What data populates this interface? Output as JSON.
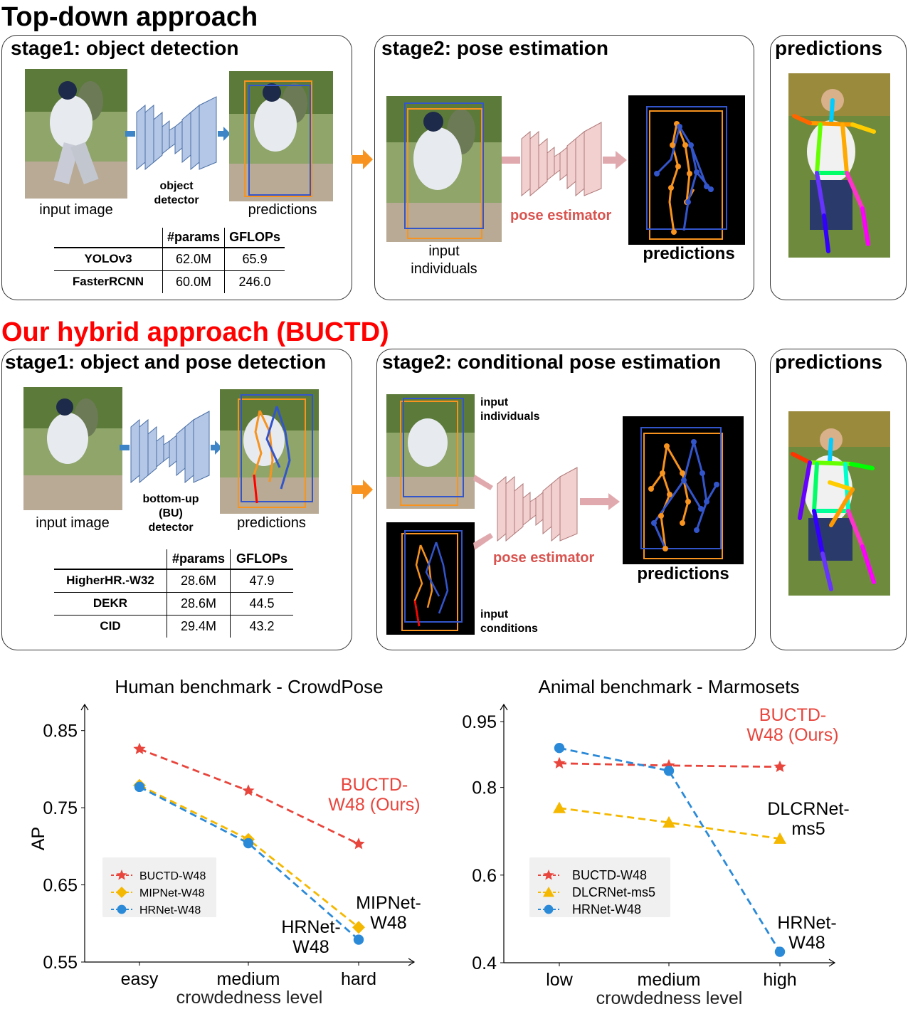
{
  "top": {
    "heading": "Top-down approach",
    "stage1_title": "stage1: object detection",
    "stage2_title": "stage2: pose estimation",
    "pred_title": "predictions",
    "input_image_label": "input image",
    "detector_label": "object\ndetector",
    "predictions_label": "predictions",
    "input_individuals_label": "input\nindividuals",
    "pose_estimator_label": "pose estimator",
    "predictions2_label": "predictions",
    "table": {
      "headers": [
        "",
        "#params",
        "GFLOPs"
      ],
      "rows": [
        [
          "YOLOv3",
          "62.0M",
          "65.9"
        ],
        [
          "FasterRCNN",
          "60.0M",
          "246.0"
        ]
      ]
    }
  },
  "hybrid": {
    "heading": "Our hybrid approach (BUCTD)",
    "stage1_title": "stage1: object and pose detection",
    "stage2_title": "stage2: conditional pose estimation",
    "pred_title": "predictions",
    "input_image_label": "input image",
    "detector_label": "bottom-up\n(BU)\ndetector",
    "predictions_label": "predictions",
    "input_individuals_label": "input\nindividuals",
    "input_conditions_label": "input\nconditions",
    "pose_estimator_label": "pose estimator",
    "predictions2_label": "predictions",
    "table": {
      "headers": [
        "",
        "#params",
        "GFLOPs"
      ],
      "rows": [
        [
          "HigherHR.-W32",
          "28.6M",
          "47.9"
        ],
        [
          "DEKR",
          "28.6M",
          "44.5"
        ],
        [
          "CID",
          "29.4M",
          "43.2"
        ]
      ]
    }
  },
  "colors": {
    "red": "#e8453c",
    "yellow": "#f5b800",
    "blue": "#2b8ad8",
    "accent_red": "#ff0000",
    "label_red": "#d9534f"
  },
  "chart_data": [
    {
      "type": "line",
      "title": "Human benchmark - CrowdPose",
      "xlabel": "crowdedness level",
      "ylabel": "AP",
      "categories": [
        "easy",
        "medium",
        "hard"
      ],
      "yticks": [
        "0.55",
        "0.65",
        "0.75",
        "0.85"
      ],
      "ylim": [
        0.55,
        0.87
      ],
      "legend_position": "lower-left",
      "series": [
        {
          "name": "BUCTD-W48",
          "values": [
            0.826,
            0.772,
            0.703
          ],
          "marker": "star",
          "color": "#e8453c"
        },
        {
          "name": "MIPNet-W48",
          "values": [
            0.779,
            0.709,
            0.595
          ],
          "marker": "diamond",
          "color": "#f5b800"
        },
        {
          "name": "HRNet-W48",
          "values": [
            0.777,
            0.704,
            0.579
          ],
          "marker": "circle",
          "color": "#2b8ad8"
        }
      ],
      "annotations": [
        {
          "text": "BUCTD-\nW48 (Ours)",
          "color": "#e8453c"
        },
        {
          "text": "MIPNet-\nW48",
          "color": "#000000"
        },
        {
          "text": "HRNet-\nW48",
          "color": "#000000"
        }
      ]
    },
    {
      "type": "line",
      "title": "Animal benchmark - Marmosets",
      "xlabel": "crowdedness level",
      "ylabel": "",
      "categories": [
        "low",
        "medium",
        "high"
      ],
      "yticks": [
        "0.4",
        "0.6",
        "0.8",
        "0.95"
      ],
      "ylim": [
        0.4,
        0.965
      ],
      "legend_position": "lower-left",
      "series": [
        {
          "name": "BUCTD-W48",
          "values": [
            0.855,
            0.85,
            0.847
          ],
          "marker": "star",
          "color": "#e8453c"
        },
        {
          "name": "DLCRNet-ms5",
          "values": [
            0.753,
            0.72,
            0.683
          ],
          "marker": "triangle",
          "color": "#f5b800"
        },
        {
          "name": "HRNet-W48",
          "values": [
            0.89,
            0.838,
            0.425
          ],
          "marker": "circle",
          "color": "#2b8ad8"
        }
      ],
      "annotations": [
        {
          "text": "BUCTD-\nW48 (Ours)",
          "color": "#e8453c"
        },
        {
          "text": "DLCRNet-\nms5",
          "color": "#000000"
        },
        {
          "text": "HRNet-\nW48",
          "color": "#000000"
        }
      ]
    }
  ]
}
